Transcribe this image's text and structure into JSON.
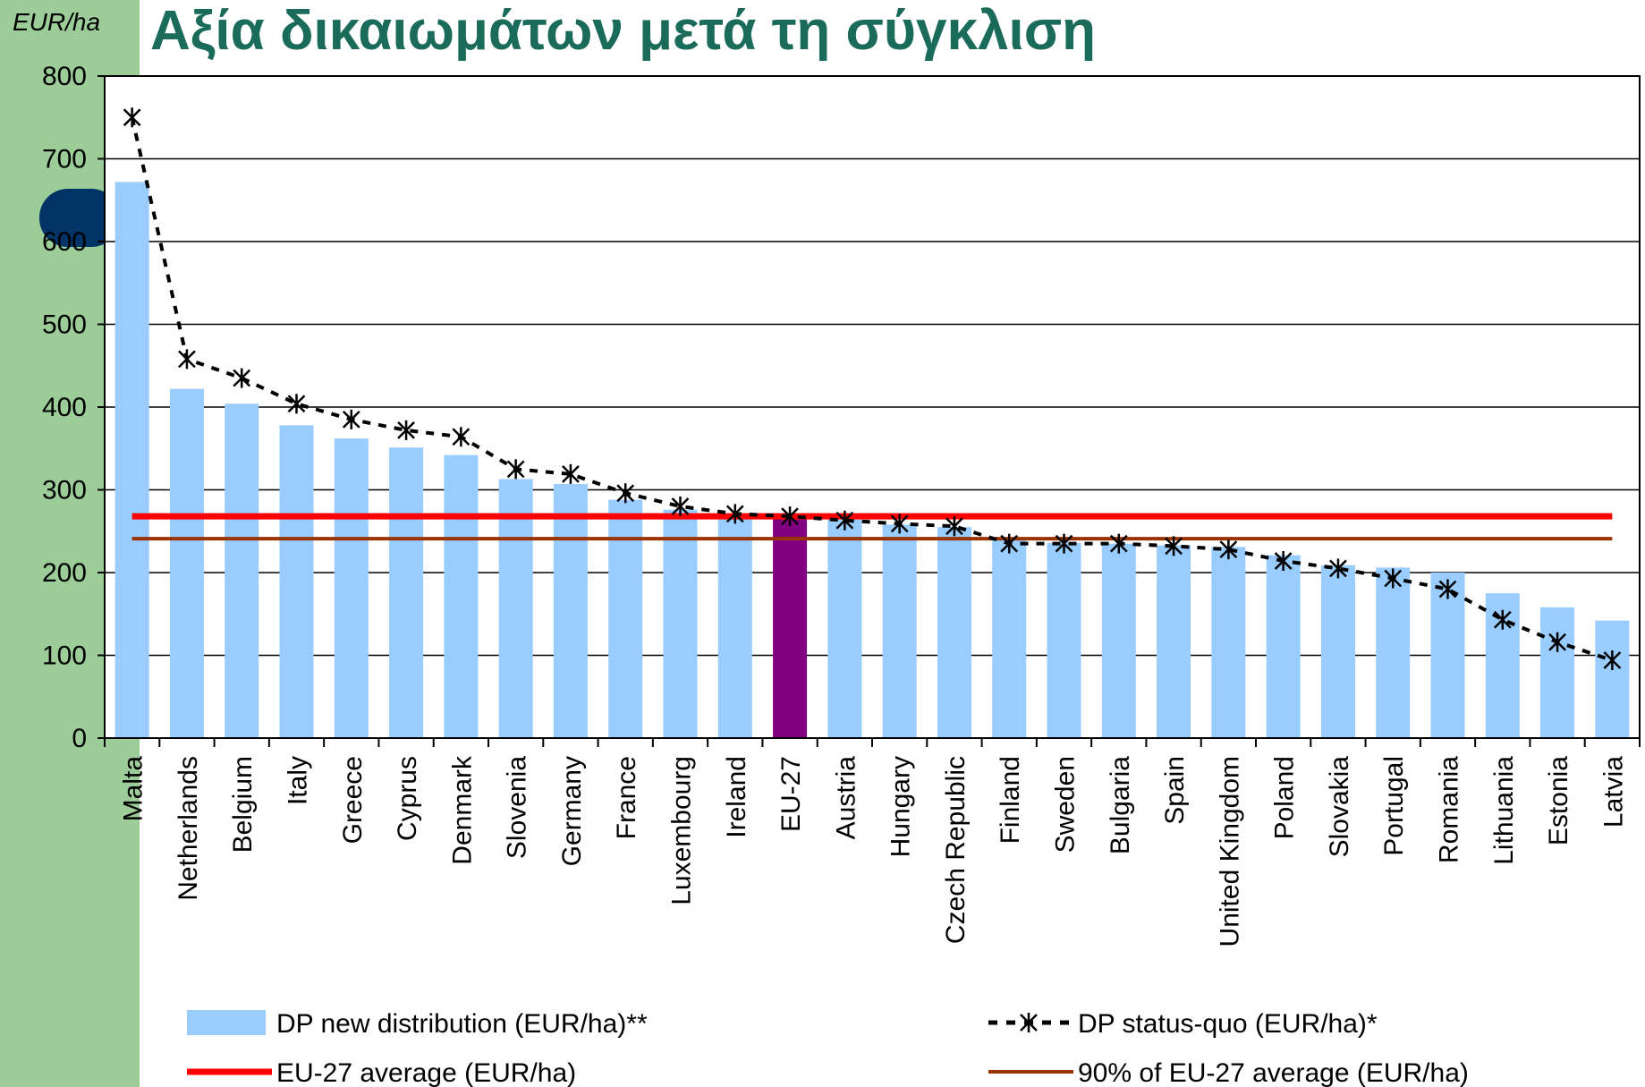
{
  "chart_data": {
    "type": "bar_line",
    "title": "Αξία δικαιωμάτων μετά τη σύγκλιση",
    "y_axis_label": "EUR/ha",
    "categories": [
      "Malta",
      "Netherlands",
      "Belgium",
      "Italy",
      "Greece",
      "Cyprus",
      "Denmark",
      "Slovenia",
      "Germany",
      "France",
      "Luxembourg",
      "Ireland",
      "EU-27",
      "Austria",
      "Hungary",
      "Czech Republic",
      "Finland",
      "Sweden",
      "Bulgaria",
      "Spain",
      "United Kingdom",
      "Poland",
      "Slovakia",
      "Portugal",
      "Romania",
      "Lithuania",
      "Estonia",
      "Latvia"
    ],
    "series": [
      {
        "name": "DP new distribution (EUR/ha)**",
        "type": "bar",
        "color": "#99ccff",
        "highlight": {
          "index": 12,
          "color": "#800080"
        },
        "values": [
          672,
          422,
          404,
          378,
          362,
          351,
          342,
          313,
          307,
          288,
          276,
          270,
          268,
          264,
          258,
          255,
          240,
          236,
          235,
          233,
          231,
          221,
          209,
          206,
          200,
          175,
          158,
          142
        ]
      },
      {
        "name": "DP status-quo (EUR/ha)*",
        "type": "line",
        "color": "#000000",
        "values": [
          750,
          458,
          435,
          404,
          385,
          372,
          364,
          325,
          319,
          296,
          280,
          271,
          268,
          263,
          259,
          256,
          235,
          235,
          235,
          232,
          228,
          214,
          205,
          193,
          180,
          143,
          116,
          94
        ]
      }
    ],
    "reference_lines": [
      {
        "name": "EU-27 average (EUR/ha)",
        "color": "#ff0000",
        "value": 268
      },
      {
        "name": "90% of EU-27 average (EUR/ha)",
        "color": "#993300",
        "value": 241
      }
    ],
    "ylim": [
      0,
      800
    ],
    "yticks": [
      0,
      100,
      200,
      300,
      400,
      500,
      600,
      700,
      800
    ],
    "grid": true
  }
}
